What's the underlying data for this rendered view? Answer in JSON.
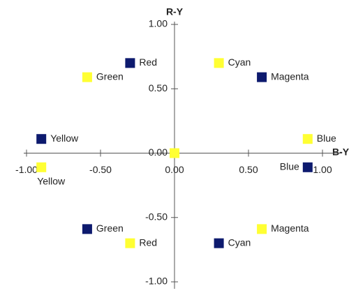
{
  "chart_data": {
    "type": "scatter",
    "x_label": "B-Y",
    "y_label": "R-Y",
    "xlim": [
      -1,
      1
    ],
    "ylim": [
      -1,
      1
    ],
    "xticks": [
      {
        "value": -1,
        "label": "-1.00"
      },
      {
        "value": -0.5,
        "label": "-0.50"
      },
      {
        "value": 0,
        "label": "0.00"
      },
      {
        "value": 0.5,
        "label": "0.50"
      },
      {
        "value": 1,
        "label": "1.00"
      }
    ],
    "yticks": [
      {
        "value": -1,
        "label": "-1.00"
      },
      {
        "value": -0.5,
        "label": "-0.50"
      },
      {
        "value": 0,
        "label": "0.00"
      },
      {
        "value": 0.5,
        "label": "0.50"
      },
      {
        "value": 1,
        "label": "1.00"
      }
    ],
    "series": [
      {
        "color": "#0d1a6e",
        "x": [
          -0.3,
          0.59,
          -0.9,
          0.9,
          -0.59,
          0.3
        ],
        "y": [
          0.7,
          0.59,
          0.11,
          -0.11,
          -0.59,
          -0.7
        ],
        "labels": [
          "Red",
          "Magenta",
          "Yellow",
          "Blue",
          "Green",
          "Cyan"
        ]
      },
      {
        "color": "#ffff33",
        "x": [
          0.3,
          -0.59,
          0.9,
          -0.9,
          0.59,
          -0.3,
          0
        ],
        "y": [
          0.7,
          0.59,
          0.11,
          -0.11,
          -0.59,
          -0.7,
          0
        ],
        "labels": [
          "Cyan",
          "Green",
          "Blue",
          "Yellow",
          "Magenta",
          "Red",
          null
        ]
      }
    ]
  }
}
